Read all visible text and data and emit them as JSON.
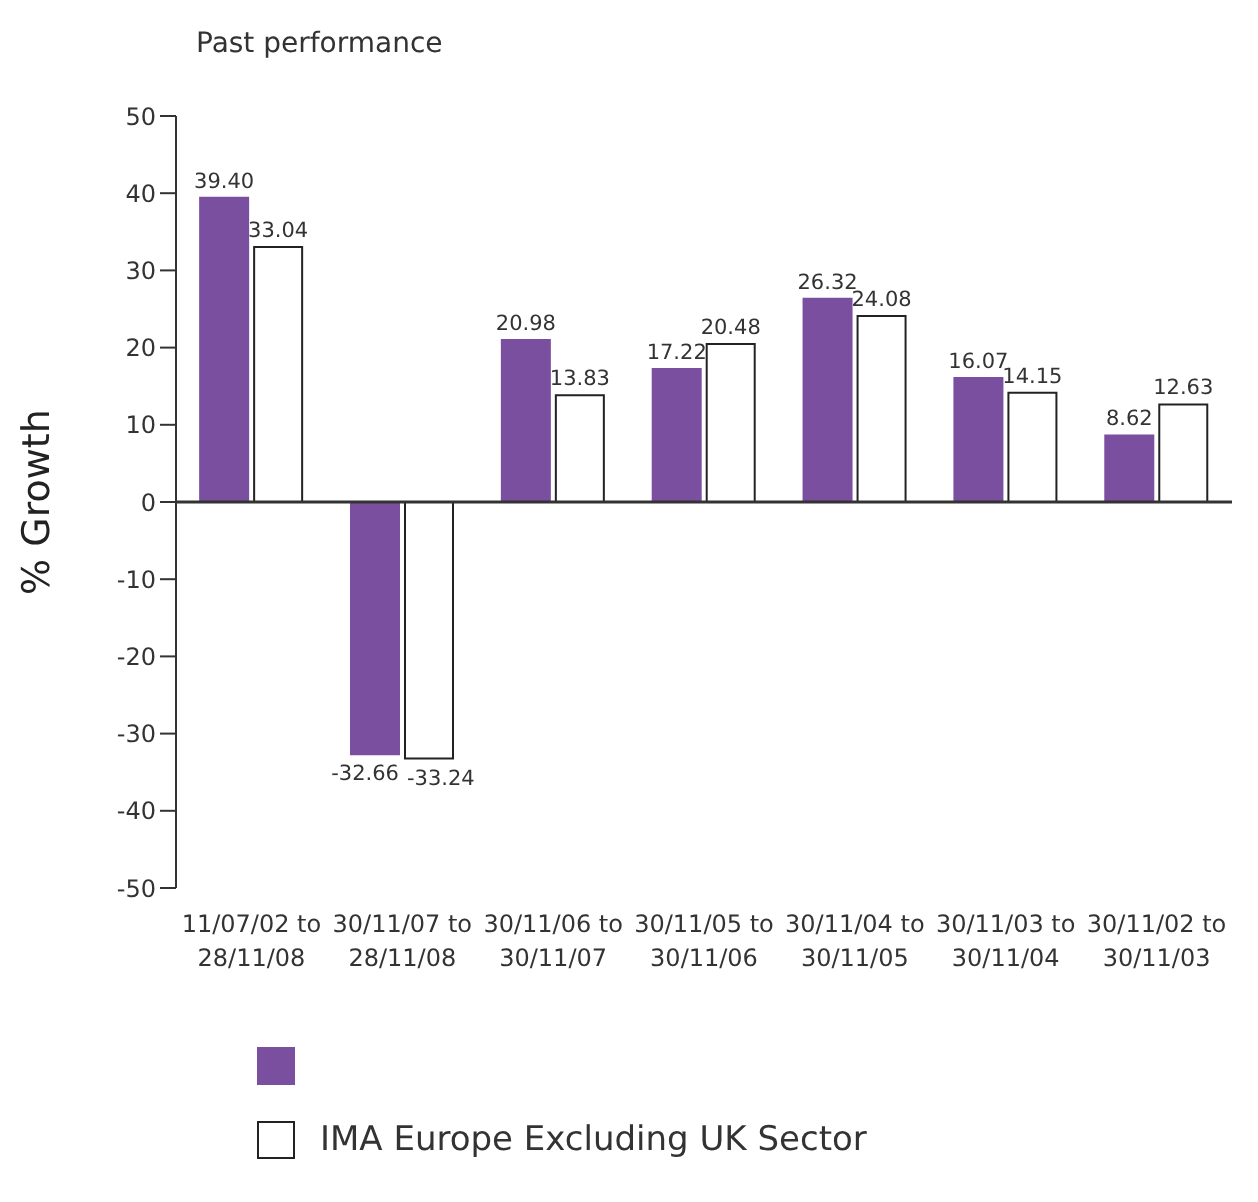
{
  "chart_data": {
    "type": "bar",
    "title": "Past performance",
    "ylabel": "% Growth",
    "categories": [
      "11/07/02 to\n28/11/08",
      "30/11/07 to\n28/11/08",
      "30/11/06 to\n30/11/07",
      "30/11/05 to\n30/11/06",
      "30/11/04 to\n30/11/05",
      "30/11/03 to\n30/11/04",
      "30/11/02 to\n30/11/03"
    ],
    "series": [
      {
        "color": "#7b4fa0",
        "values": [
          39.4,
          -32.66,
          20.98,
          17.22,
          26.32,
          16.07,
          8.62
        ],
        "value_labels": [
          "39.40",
          "-32.66",
          "20.98",
          "17.22",
          "26.32",
          "16.07",
          "8.62"
        ]
      },
      {
        "name": "IMA Europe Excluding UK Sector",
        "color": "#ffffff",
        "values": [
          33.04,
          -33.24,
          13.83,
          20.48,
          24.08,
          14.15,
          12.63
        ],
        "value_labels": [
          "33.04",
          "-33.24",
          "13.83",
          "20.48",
          "24.08",
          "14.15",
          "12.63"
        ]
      }
    ],
    "ylim": [
      -50,
      50
    ],
    "yticks": [
      -50,
      -40,
      -30,
      -20,
      -10,
      0,
      10,
      20,
      30,
      40,
      50
    ],
    "grid": false,
    "legend": "bottom",
    "ref_lines": [
      {
        "axis": "y",
        "value": 0,
        "color": "#333333"
      }
    ]
  }
}
